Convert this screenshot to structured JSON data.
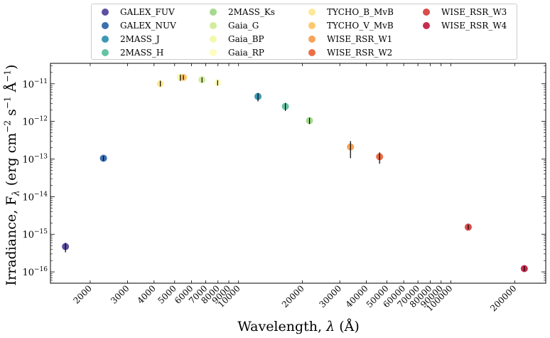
{
  "chart_data": {
    "type": "scatter",
    "xscale": "log",
    "yscale": "log",
    "xlabel": "Wavelength, λ (Å)",
    "ylabel": "Irradiance, F",
    "ylabel_sub": "λ",
    "ylabel_units": " (erg cm",
    "ylabel_units_sup1": "−2",
    "ylabel_units_mid": " s",
    "ylabel_units_sup2": "−1",
    "ylabel_units_end": " Å",
    "ylabel_units_sup3": "−1",
    "ylabel_units_close": ")",
    "xlabel_text": "Wavelength, ",
    "xlabel_sym": "λ",
    "xlabel_unit": " (Å)",
    "xlim": [
      1300,
      280000
    ],
    "ylim": [
      5e-17,
      3.5e-11
    ],
    "xticks": [
      {
        "value": 2000,
        "label": "2000"
      },
      {
        "value": 3000,
        "label": "3000"
      },
      {
        "value": 4000,
        "label": "4000"
      },
      {
        "value": 5000,
        "label": "5000"
      },
      {
        "value": 6000,
        "label": "6000"
      },
      {
        "value": 7000,
        "label": "7000"
      },
      {
        "value": 8000,
        "label": "8000"
      },
      {
        "value": 9000,
        "label": "9000"
      },
      {
        "value": 10000,
        "label": "10000"
      },
      {
        "value": 20000,
        "label": "20000"
      },
      {
        "value": 30000,
        "label": "30000"
      },
      {
        "value": 40000,
        "label": "40000"
      },
      {
        "value": 50000,
        "label": "50000"
      },
      {
        "value": 60000,
        "label": "60000"
      },
      {
        "value": 70000,
        "label": "70000"
      },
      {
        "value": 80000,
        "label": "80000"
      },
      {
        "value": 90000,
        "label": "90000"
      },
      {
        "value": 100000,
        "label": "100000"
      },
      {
        "value": 200000,
        "label": "200000"
      }
    ],
    "yticks": [
      {
        "value": 1e-16,
        "base": "10",
        "exp": "−16"
      },
      {
        "value": 1e-15,
        "base": "10",
        "exp": "−15"
      },
      {
        "value": 1e-14,
        "base": "10",
        "exp": "−14"
      },
      {
        "value": 1e-13,
        "base": "10",
        "exp": "−13"
      },
      {
        "value": 1e-12,
        "base": "10",
        "exp": "−12"
      },
      {
        "value": 1e-11,
        "base": "10",
        "exp": "−11"
      }
    ],
    "series": [
      {
        "name": "GALEX_FUV",
        "color": "#5e4fa2",
        "x": 1530,
        "y": 4.7e-16,
        "ylo": 3.3e-16,
        "yhi": 5.9e-16
      },
      {
        "name": "GALEX_NUV",
        "color": "#3b6fb0",
        "x": 2310,
        "y": 1.05e-13,
        "ylo": 9e-14,
        "yhi": 1.2e-13
      },
      {
        "name": "2MASS_J",
        "color": "#3d99b3",
        "x": 12350,
        "y": 4.6e-12,
        "ylo": 3.4e-12,
        "yhi": 5.7e-12
      },
      {
        "name": "2MASS_H",
        "color": "#66c2a5",
        "x": 16620,
        "y": 2.5e-12,
        "ylo": 1.9e-12,
        "yhi": 3.1e-12
      },
      {
        "name": "2MASS_Ks",
        "color": "#a6d98f",
        "x": 21590,
        "y": 1.05e-12,
        "ylo": 8.5e-13,
        "yhi": 1.25e-12
      },
      {
        "name": "Gaia_G",
        "color": "#d3ec9c",
        "x": 6730,
        "y": 1.28e-11,
        "ylo": 1.08e-11,
        "yhi": 1.48e-11
      },
      {
        "name": "Gaia_BP",
        "color": "#f2f9ac",
        "x": 5320,
        "y": 1.48e-11,
        "ylo": 1.2e-11,
        "yhi": 1.75e-11
      },
      {
        "name": "Gaia_RP",
        "color": "#fffdbf",
        "x": 7970,
        "y": 1.07e-11,
        "ylo": 9e-12,
        "yhi": 1.25e-11
      },
      {
        "name": "TYCHO_B_MvB",
        "color": "#fee999",
        "x": 4280,
        "y": 1e-11,
        "ylo": 8.5e-12,
        "yhi": 1.2e-11
      },
      {
        "name": "TYCHO_V_MvB",
        "color": "#fec86e",
        "x": 5500,
        "y": 1.48e-11,
        "ylo": 1.28e-11,
        "yhi": 1.7e-11
      },
      {
        "name": "WISE_RSR_W1",
        "color": "#f8a35a",
        "x": 33680,
        "y": 2.1e-13,
        "ylo": 1.05e-13,
        "yhi": 3e-13
      },
      {
        "name": "WISE_RSR_W2",
        "color": "#ec6d46",
        "x": 46180,
        "y": 1.15e-13,
        "ylo": 7.5e-14,
        "yhi": 1.5e-13
      },
      {
        "name": "WISE_RSR_W3",
        "color": "#d94c4b",
        "x": 120820,
        "y": 1.55e-15,
        "ylo": 1.35e-15,
        "yhi": 1.8e-15
      },
      {
        "name": "WISE_RSR_W4",
        "color": "#c72c50",
        "x": 221940,
        "y": 1.22e-16,
        "ylo": 1.05e-16,
        "yhi": 1.42e-16
      }
    ],
    "legend": {
      "placement": "top",
      "columns": 4
    },
    "grid": false
  }
}
